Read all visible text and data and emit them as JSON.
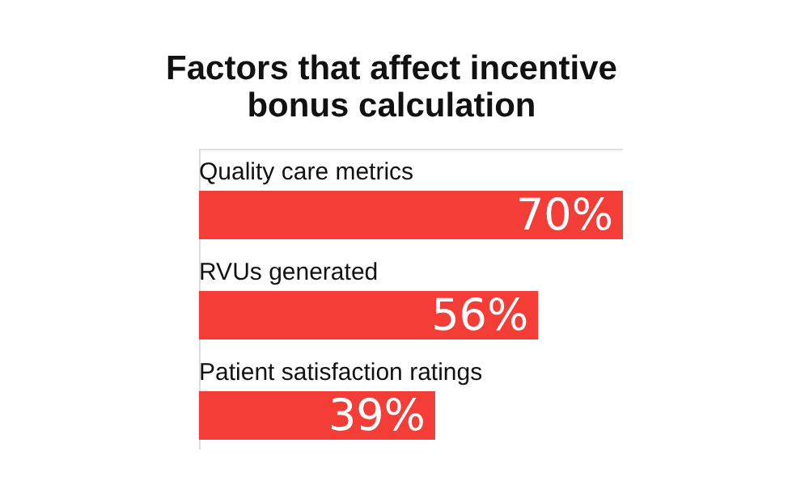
{
  "chart_data": {
    "type": "bar",
    "orientation": "horizontal",
    "title": [
      "Factors that affect incentive",
      "bonus calculation"
    ],
    "categories": [
      "Quality care metrics",
      "RVUs generated",
      "Patient satisfaction ratings"
    ],
    "values": [
      70,
      56,
      39
    ],
    "value_labels": [
      "70%",
      "56%",
      "39%"
    ],
    "color": "#f43d37"
  }
}
